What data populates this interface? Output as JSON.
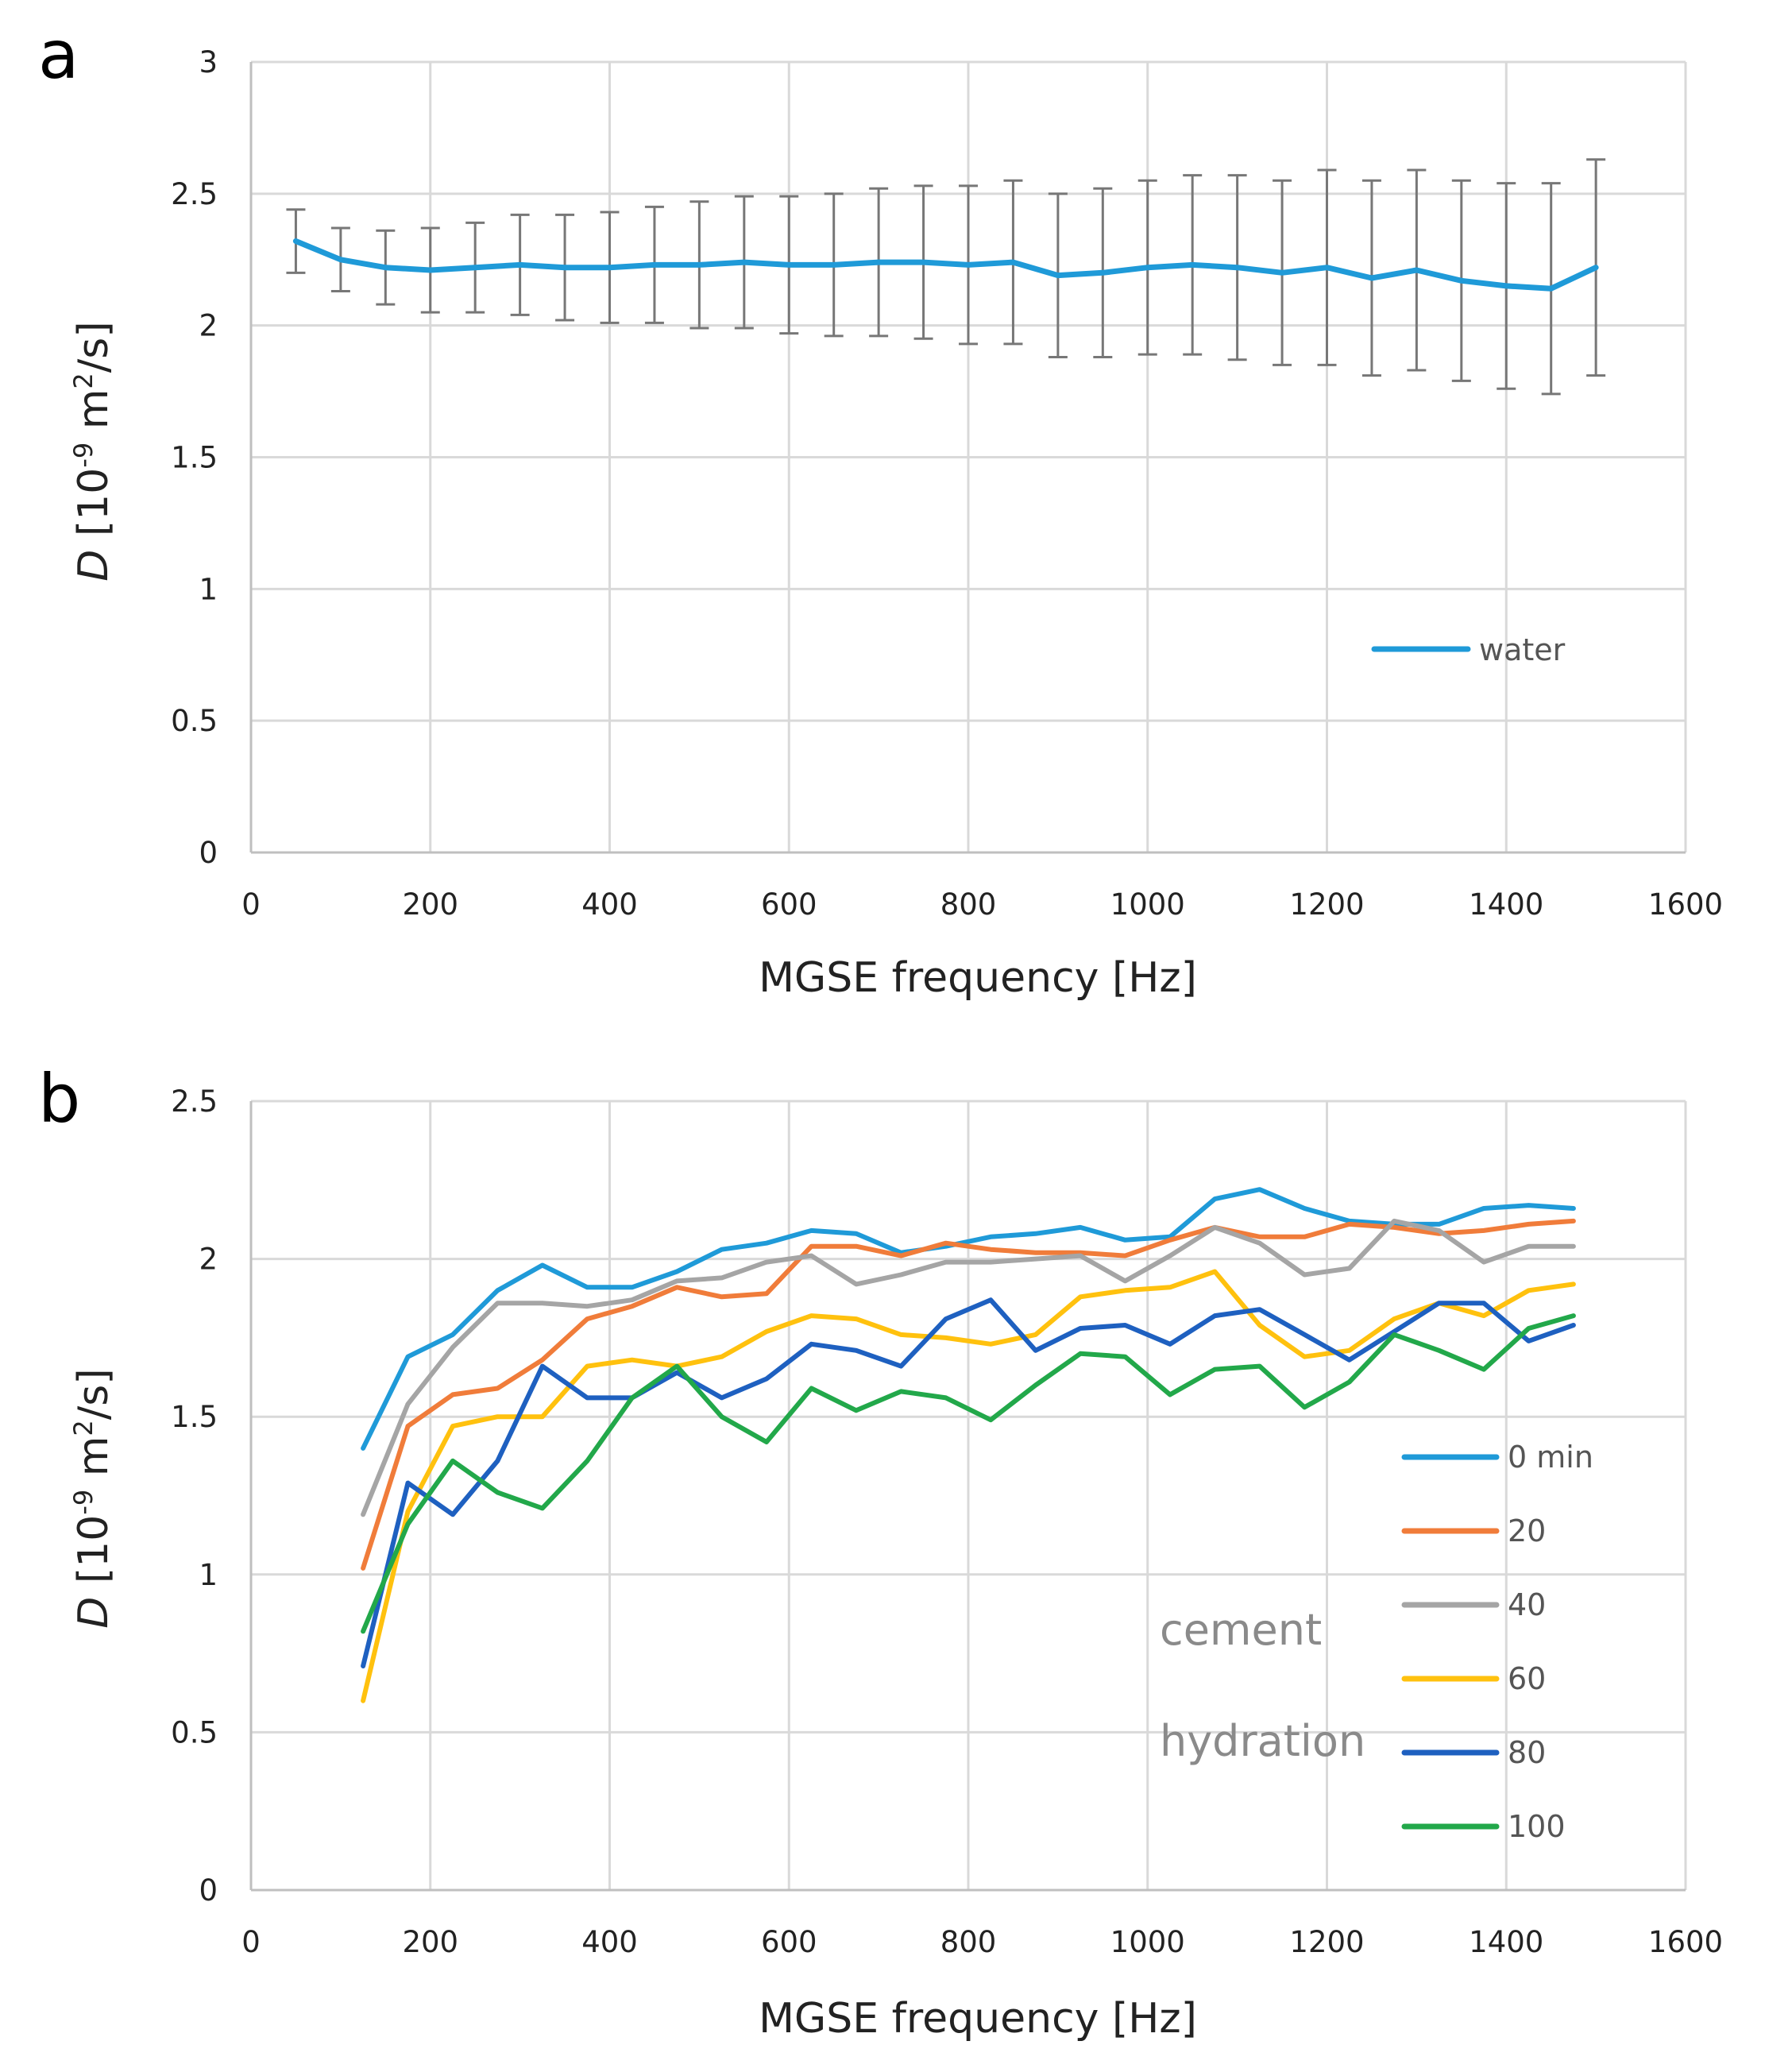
{
  "chart_data": [
    {
      "type": "line",
      "panel_label": "a",
      "xlabel": "MGSE frequency [Hz]",
      "ylabel": {
        "var": "D",
        "pre": " [10",
        "exp1": "-9",
        "mid": " m",
        "exp2": "2",
        "post": "/s]"
      },
      "xlim": [
        0,
        1600
      ],
      "ylim": [
        0,
        3
      ],
      "xticks": [
        0,
        200,
        400,
        600,
        800,
        1000,
        1200,
        1400,
        1600
      ],
      "yticks": [
        0,
        0.5,
        1,
        1.5,
        2,
        2.5,
        3
      ],
      "grid": true,
      "legend_position": "lower-right",
      "colors": {
        "water": "#1f9ad8",
        "errorbar": "#777777",
        "grid": "#d9d9d9",
        "axis": "#bfbfbf"
      },
      "x": [
        50,
        100,
        150,
        200,
        250,
        300,
        350,
        400,
        450,
        500,
        550,
        600,
        650,
        700,
        750,
        800,
        850,
        900,
        950,
        1000,
        1050,
        1100,
        1150,
        1200,
        1250,
        1300,
        1350,
        1400,
        1450,
        1500
      ],
      "series": [
        {
          "name": "water",
          "color": "#1f9ad8",
          "values": [
            2.32,
            2.25,
            2.22,
            2.21,
            2.22,
            2.23,
            2.22,
            2.22,
            2.23,
            2.23,
            2.24,
            2.23,
            2.23,
            2.24,
            2.24,
            2.23,
            2.24,
            2.19,
            2.2,
            2.22,
            2.23,
            2.22,
            2.2,
            2.22,
            2.18,
            2.21,
            2.17,
            2.15,
            2.14,
            2.22
          ],
          "error": [
            0.12,
            0.12,
            0.14,
            0.16,
            0.17,
            0.19,
            0.2,
            0.21,
            0.22,
            0.24,
            0.25,
            0.26,
            0.27,
            0.28,
            0.29,
            0.3,
            0.31,
            0.31,
            0.32,
            0.33,
            0.34,
            0.35,
            0.35,
            0.37,
            0.37,
            0.38,
            0.38,
            0.39,
            0.4,
            0.41
          ]
        }
      ]
    },
    {
      "type": "line",
      "panel_label": "b",
      "xlabel": "MGSE frequency [Hz]",
      "ylabel": {
        "var": "D",
        "pre": " [10",
        "exp1": "-9",
        "mid": " m",
        "exp2": "2",
        "post": "/s]"
      },
      "xlim": [
        0,
        1600
      ],
      "ylim": [
        0,
        2.5
      ],
      "xticks": [
        0,
        200,
        400,
        600,
        800,
        1000,
        1200,
        1400,
        1600
      ],
      "yticks": [
        0,
        0.5,
        1,
        1.5,
        2,
        2.5
      ],
      "grid": true,
      "legend_position": "lower-right",
      "annotations": [
        "cement",
        "hydration"
      ],
      "x": [
        125,
        175,
        225,
        275,
        325,
        375,
        425,
        475,
        525,
        575,
        625,
        675,
        725,
        775,
        825,
        875,
        925,
        975,
        1025,
        1075,
        1125,
        1175,
        1225,
        1275,
        1325,
        1375,
        1425,
        1475
      ],
      "series": [
        {
          "name": "0 min",
          "color": "#1f9ad8",
          "values": [
            1.4,
            1.69,
            1.76,
            1.9,
            1.98,
            1.91,
            1.91,
            1.96,
            2.03,
            2.05,
            2.09,
            2.08,
            2.02,
            2.04,
            2.07,
            2.08,
            2.1,
            2.06,
            2.07,
            2.19,
            2.22,
            2.16,
            2.12,
            2.11,
            2.11,
            2.16,
            2.17,
            2.16
          ]
        },
        {
          "name": "20",
          "color": "#f07c3a",
          "values": [
            1.02,
            1.47,
            1.57,
            1.59,
            1.68,
            1.81,
            1.85,
            1.91,
            1.88,
            1.89,
            2.04,
            2.04,
            2.01,
            2.05,
            2.03,
            2.02,
            2.02,
            2.01,
            2.06,
            2.1,
            2.07,
            2.07,
            2.11,
            2.1,
            2.08,
            2.09,
            2.11,
            2.12
          ]
        },
        {
          "name": "40",
          "color": "#a5a5a5",
          "values": [
            1.19,
            1.54,
            1.72,
            1.86,
            1.86,
            1.85,
            1.87,
            1.93,
            1.94,
            1.99,
            2.01,
            1.92,
            1.95,
            1.99,
            1.99,
            2.0,
            2.01,
            1.93,
            2.01,
            2.1,
            2.05,
            1.95,
            1.97,
            2.12,
            2.09,
            1.99,
            2.04,
            2.04
          ]
        },
        {
          "name": "60",
          "color": "#ffc10e",
          "values": [
            0.6,
            1.2,
            1.47,
            1.5,
            1.5,
            1.66,
            1.68,
            1.66,
            1.69,
            1.77,
            1.82,
            1.81,
            1.76,
            1.75,
            1.73,
            1.76,
            1.88,
            1.9,
            1.91,
            1.96,
            1.79,
            1.69,
            1.71,
            1.81,
            1.86,
            1.82,
            1.9,
            1.92
          ]
        },
        {
          "name": "80",
          "color": "#1e60c0",
          "values": [
            0.71,
            1.29,
            1.19,
            1.36,
            1.66,
            1.56,
            1.56,
            1.64,
            1.56,
            1.62,
            1.73,
            1.71,
            1.66,
            1.81,
            1.87,
            1.71,
            1.78,
            1.79,
            1.73,
            1.82,
            1.84,
            1.76,
            1.68,
            1.77,
            1.86,
            1.86,
            1.74,
            1.79
          ]
        },
        {
          "name": "100",
          "color": "#22a84a",
          "values": [
            0.82,
            1.16,
            1.36,
            1.26,
            1.21,
            1.36,
            1.56,
            1.66,
            1.5,
            1.42,
            1.59,
            1.52,
            1.58,
            1.56,
            1.49,
            1.6,
            1.7,
            1.69,
            1.57,
            1.65,
            1.66,
            1.53,
            1.61,
            1.76,
            1.71,
            1.65,
            1.78,
            1.82
          ]
        }
      ]
    }
  ]
}
